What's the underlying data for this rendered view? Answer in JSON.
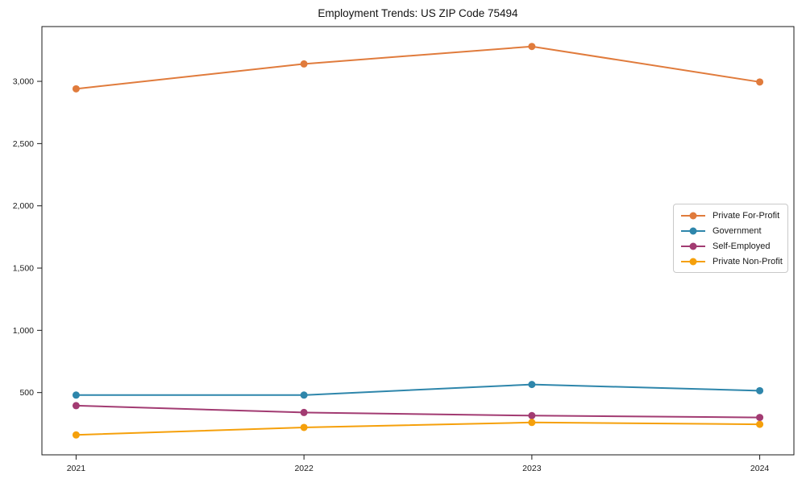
{
  "title": "Employment Trends: US ZIP Code 75494",
  "chart_data": {
    "type": "line",
    "x": [
      2021,
      2022,
      2023,
      2024
    ],
    "categories": [
      "2021",
      "2022",
      "2023",
      "2024"
    ],
    "series": [
      {
        "name": "Private For-Profit",
        "color": "#E07B3C",
        "values": [
          2940,
          3140,
          3280,
          2995
        ]
      },
      {
        "name": "Government",
        "color": "#2E86AB",
        "values": [
          480,
          480,
          565,
          515
        ]
      },
      {
        "name": "Self-Employed",
        "color": "#A23B72",
        "values": [
          395,
          340,
          315,
          300
        ]
      },
      {
        "name": "Private Non-Profit",
        "color": "#F5A00B",
        "values": [
          160,
          220,
          260,
          245
        ]
      }
    ],
    "yticks": [
      500,
      1000,
      1500,
      2000,
      2500,
      3000
    ],
    "ytick_labels": [
      "500",
      "1,000",
      "1,500",
      "2,000",
      "2,500",
      "3,000"
    ],
    "ylim": [
      0,
      3440
    ],
    "xlim": [
      2020.85,
      2024.15
    ],
    "xlabel": "",
    "ylabel": "",
    "grid": false,
    "legend_position": "center-right",
    "marker": "circle",
    "frame_color": "#1a1a1a"
  }
}
